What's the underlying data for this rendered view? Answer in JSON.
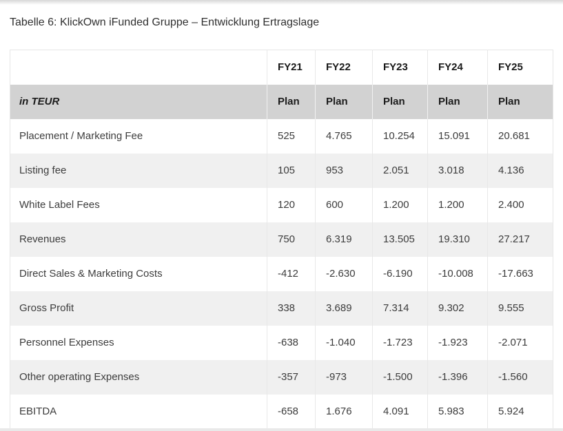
{
  "page": {
    "caption": "Tabelle 6: KlickOwn iFunded Gruppe – Entwicklung Ertragslage"
  },
  "table": {
    "col_headers": [
      "FY21",
      "FY22",
      "FY23",
      "FY24",
      "FY25"
    ],
    "unit_label": "in TEUR",
    "subheader_values": [
      "Plan",
      "Plan",
      "Plan",
      "Plan",
      "Plan"
    ],
    "rows": [
      {
        "label": "Placement / Marketing Fee",
        "values": [
          "525",
          "4.765",
          "10.254",
          "15.091",
          "20.681"
        ]
      },
      {
        "label": "Listing fee",
        "values": [
          "105",
          "953",
          "2.051",
          "3.018",
          "4.136"
        ]
      },
      {
        "label": "White Label Fees",
        "values": [
          "120",
          "600",
          "1.200",
          "1.200",
          "2.400"
        ]
      },
      {
        "label": "Revenues",
        "values": [
          "750",
          "6.319",
          "13.505",
          "19.310",
          "27.217"
        ]
      },
      {
        "label": "Direct Sales & Marketing Costs",
        "values": [
          "-412",
          "-2.630",
          "-6.190",
          "-10.008",
          "-17.663"
        ]
      },
      {
        "label": "Gross Profit",
        "values": [
          "338",
          "3.689",
          "7.314",
          "9.302",
          "9.555"
        ]
      },
      {
        "label": "Personnel Expenses",
        "values": [
          "-638",
          "-1.040",
          "-1.723",
          "-1.923",
          "-2.071"
        ]
      },
      {
        "label": "Other operating Expenses",
        "values": [
          "-357",
          "-973",
          "-1.500",
          "-1.396",
          "-1.560"
        ]
      },
      {
        "label": "EBITDA",
        "values": [
          "-658",
          "1.676",
          "4.091",
          "5.983",
          "5.924"
        ]
      }
    ]
  },
  "colors": {
    "unit_row_bg": "#d2d2d2",
    "zebra_row_bg": "#f0f0f0",
    "border": "#e8e8e8",
    "text": "#3c3c3c",
    "edge_strip": "#e9e9e9"
  }
}
